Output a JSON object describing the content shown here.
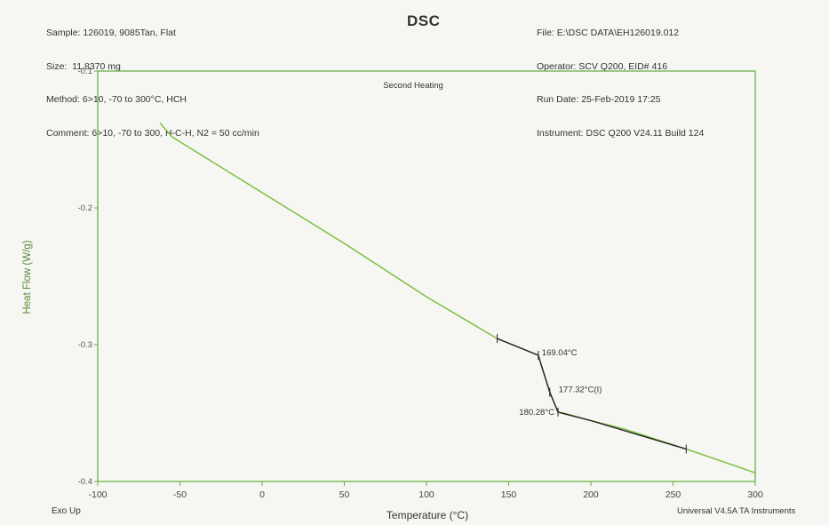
{
  "header": {
    "left_lines": [
      "Sample: 126019, 9085Tan, Flat",
      "Size:  11.8370 mg",
      "Method: 6>10, -70 to 300°C, HCH",
      "Comment: 6>10, -70 to 300, H-C-H, N2 = 50 cc/min"
    ],
    "right_lines": [
      "File: E:\\DSC DATA\\EH126019.012",
      "Operator: SCV Q200, EID# 416",
      "Run Date: 25-Feb-2019 17:25",
      "Instrument: DSC Q200 V24.11 Build 124"
    ]
  },
  "footer": {
    "left": "Exo Up",
    "right": "Universal V4.5A TA Instruments"
  },
  "colors": {
    "frame": "#6fb04a",
    "green_curve": "#7fbf3f",
    "dark_segment": "#222222",
    "background": "#f6f6f3"
  },
  "chart_data": {
    "type": "line",
    "title": "DSC",
    "subtitle": "Second Heating",
    "xlabel": "Temperature (°C)",
    "ylabel": "Heat Flow (W/g)",
    "xlim": [
      -100,
      300
    ],
    "ylim": [
      -0.4,
      -0.1
    ],
    "x_ticks": [
      -100,
      -50,
      0,
      50,
      100,
      150,
      200,
      250,
      300
    ],
    "x_tick_labels": [
      "-100",
      "-50",
      "0",
      "50",
      "100",
      "150",
      "200",
      "250",
      "300"
    ],
    "y_ticks": [
      -0.1,
      -0.2,
      -0.3,
      -0.4
    ],
    "y_tick_labels": [
      "-0.1",
      "-0.2",
      "-0.3",
      "-0.4"
    ],
    "grid": false,
    "series": [
      {
        "role": "measured",
        "x": [
          -62,
          -60,
          -57,
          -55,
          -20,
          50,
          100,
          143,
          168
        ],
        "y": [
          -0.138,
          -0.141,
          -0.145,
          -0.148,
          -0.174,
          -0.226,
          -0.265,
          -0.2955,
          -0.3077
        ]
      },
      {
        "role": "measured",
        "x": [
          168,
          170,
          175,
          180,
          185,
          200,
          220,
          258,
          290,
          300
        ],
        "y": [
          -0.3077,
          -0.316,
          -0.3348,
          -0.3493,
          -0.3505,
          -0.3555,
          -0.3615,
          -0.3763,
          -0.3895,
          -0.3937
        ]
      },
      {
        "role": "analysis",
        "x": [
          143,
          168,
          175,
          180,
          200,
          258
        ],
        "y": [
          -0.2955,
          -0.3077,
          -0.3348,
          -0.3493,
          -0.3555,
          -0.3763
        ]
      }
    ],
    "markers": [
      {
        "x": 143,
        "y": -0.2955
      },
      {
        "x": 168,
        "y": -0.3077
      },
      {
        "x": 175,
        "y": -0.3348
      },
      {
        "x": 180,
        "y": -0.3493
      },
      {
        "x": 258,
        "y": -0.3763
      }
    ],
    "annotations": [
      {
        "text": "169.04°C",
        "x": 168,
        "y": -0.3077
      },
      {
        "text": "177.32°C(I)",
        "x": 175,
        "y": -0.3348
      },
      {
        "text": "180.28°C",
        "x": 180,
        "y": -0.3493
      }
    ]
  }
}
